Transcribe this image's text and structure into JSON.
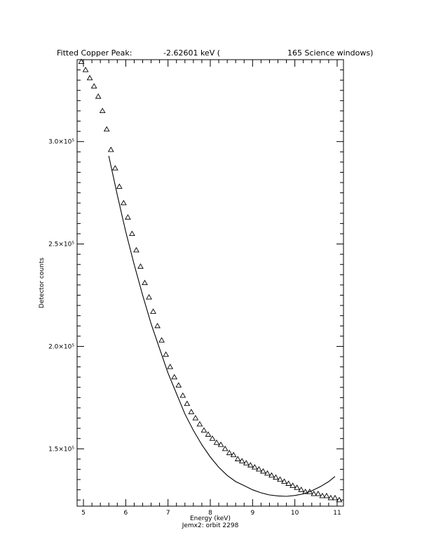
{
  "header": {
    "label": "Fitted Copper Peak:",
    "value": "-2.62601 keV (",
    "windows": "165 Science windows)"
  },
  "chart_data": {
    "type": "scatter",
    "title": "Fitted Copper Peak:      -2.62601 keV (       165 Science windows)",
    "xlabel": "Energy (keV)",
    "ylabel": "Detector counts",
    "subtitle": "Jemx2: orbit 2298",
    "xlim": [
      4.85,
      11.15
    ],
    "ylim": [
      122000,
      340000
    ],
    "x_ticks": [
      5,
      6,
      7,
      8,
      9,
      10,
      11
    ],
    "y_ticks": [
      {
        "value": 150000,
        "label": "1.5×10⁵"
      },
      {
        "value": 200000,
        "label": "2.0×10⁵"
      },
      {
        "value": 250000,
        "label": "2.5×10⁵"
      },
      {
        "value": 300000,
        "label": "3.0×10⁵"
      }
    ],
    "grid": false,
    "series": [
      {
        "marker": "triangle",
        "x": [
          4.95,
          5.05,
          5.15,
          5.25,
          5.35,
          5.45,
          5.55,
          5.65,
          5.75,
          5.85,
          5.95,
          6.05,
          6.15,
          6.25,
          6.35,
          6.45,
          6.55,
          6.65,
          6.75,
          6.85,
          6.95,
          7.05,
          7.15,
          7.25,
          7.35,
          7.45,
          7.55,
          7.65,
          7.75,
          7.85,
          7.95,
          8.05,
          8.15,
          8.25,
          8.35,
          8.45,
          8.55,
          8.65,
          8.75,
          8.85,
          8.95,
          9.05,
          9.15,
          9.25,
          9.35,
          9.45,
          9.55,
          9.65,
          9.75,
          9.85,
          9.95,
          10.05,
          10.15,
          10.25,
          10.35,
          10.45,
          10.55,
          10.65,
          10.75,
          10.85,
          10.95,
          11.05
        ],
        "y": [
          339000,
          335000,
          331000,
          327000,
          322000,
          315000,
          306000,
          296000,
          287000,
          278000,
          270000,
          263000,
          255000,
          247000,
          239000,
          231000,
          224000,
          217000,
          210000,
          203000,
          196000,
          190000,
          185000,
          181000,
          176000,
          172000,
          168000,
          165000,
          162000,
          159000,
          157000,
          155000,
          153000,
          152000,
          150000,
          148000,
          147000,
          145000,
          144000,
          143000,
          142000,
          141000,
          140000,
          139000,
          138000,
          137000,
          136000,
          135000,
          134000,
          133000,
          132000,
          131000,
          130000,
          129000,
          129000,
          128000,
          128000,
          127000,
          127000,
          126000,
          126000,
          125000
        ]
      },
      {
        "type": "line",
        "x": [
          5.6,
          5.8,
          6.0,
          6.2,
          6.4,
          6.6,
          6.8,
          7.0,
          7.2,
          7.4,
          7.6,
          7.8,
          8.0,
          8.2,
          8.4,
          8.6,
          8.8,
          9.0,
          9.2,
          9.4,
          9.6,
          9.8,
          10.0,
          10.2,
          10.4,
          10.6,
          10.8,
          10.95
        ],
        "y": [
          293000,
          274000,
          256000,
          240000,
          225000,
          211000,
          199000,
          187000,
          177000,
          167000,
          159000,
          152000,
          146000,
          141000,
          137000,
          134000,
          132000,
          130000,
          128500,
          127500,
          127000,
          126800,
          127200,
          128000,
          129500,
          131500,
          134000,
          136500
        ]
      }
    ]
  }
}
